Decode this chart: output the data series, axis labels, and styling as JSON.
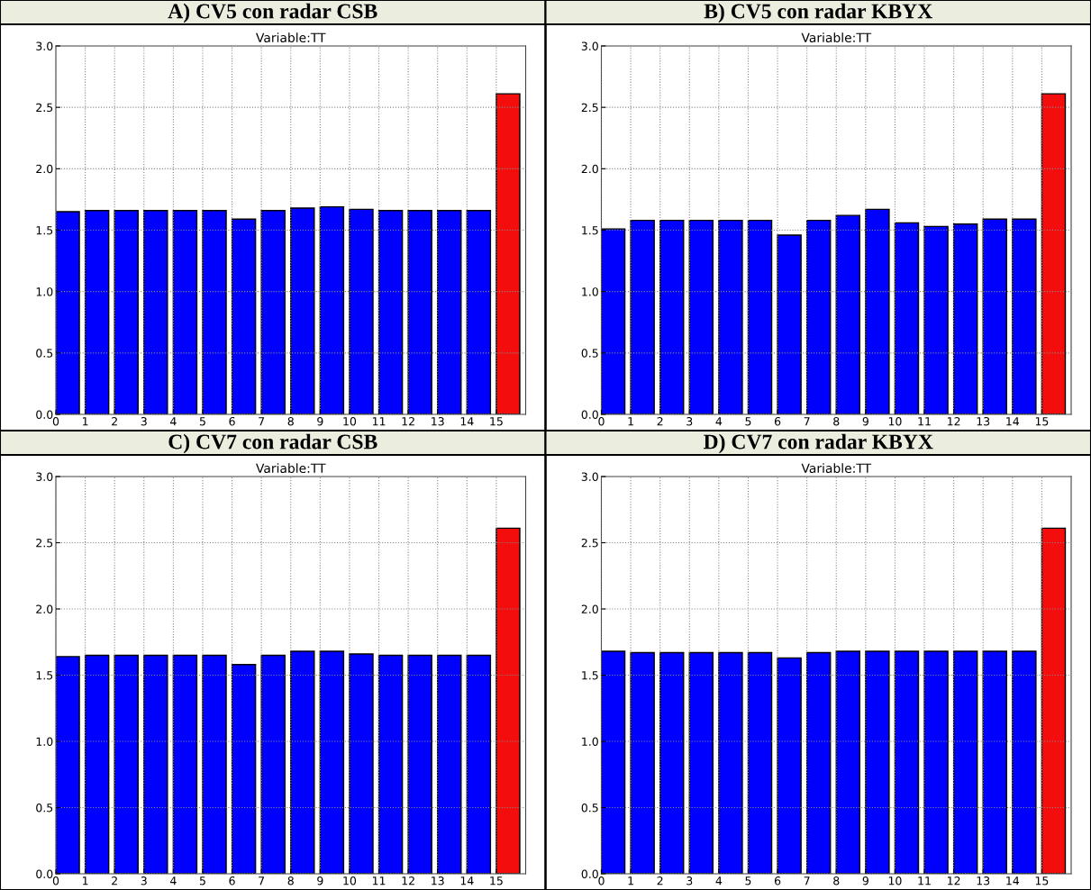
{
  "chart_data": [
    {
      "type": "bar",
      "title": "A) CV5 con radar CSB",
      "subtitle": "Variable:TT",
      "x": [
        0.4,
        1.4,
        2.4,
        3.4,
        4.4,
        5.4,
        6.4,
        7.4,
        8.4,
        9.4,
        10.4,
        11.4,
        12.4,
        13.4,
        14.4,
        15.4
      ],
      "values": [
        1.65,
        1.66,
        1.66,
        1.66,
        1.66,
        1.66,
        1.59,
        1.66,
        1.68,
        1.69,
        1.67,
        1.66,
        1.66,
        1.66,
        1.66,
        2.61
      ],
      "colors": [
        "#0000ff",
        "#0000ff",
        "#0000ff",
        "#0000ff",
        "#0000ff",
        "#0000ff",
        "#0000ff",
        "#0000ff",
        "#0000ff",
        "#0000ff",
        "#0000ff",
        "#0000ff",
        "#0000ff",
        "#0000ff",
        "#0000ff",
        "#f40d0d"
      ],
      "xlim": [
        0,
        16
      ],
      "xticks": [
        0,
        1,
        2,
        3,
        4,
        5,
        6,
        7,
        8,
        9,
        10,
        11,
        12,
        13,
        14,
        15
      ],
      "ylim": [
        0,
        3
      ],
      "yticks": [
        {
          "value": 0,
          "label": "0.0"
        },
        {
          "value": 0.5,
          "label": "0.5"
        },
        {
          "value": 1,
          "label": "1.0"
        },
        {
          "value": 1.5,
          "label": "1.5"
        },
        {
          "value": 2,
          "label": "2.0"
        },
        {
          "value": 2.5,
          "label": "2.5"
        },
        {
          "value": 3,
          "label": "3.0"
        }
      ],
      "grid": true
    },
    {
      "type": "bar",
      "title": "B) CV5 con radar KBYX",
      "subtitle": "Variable:TT",
      "x": [
        0.4,
        1.4,
        2.4,
        3.4,
        4.4,
        5.4,
        6.4,
        7.4,
        8.4,
        9.4,
        10.4,
        11.4,
        12.4,
        13.4,
        14.4,
        15.4
      ],
      "values": [
        1.51,
        1.58,
        1.58,
        1.58,
        1.58,
        1.58,
        1.46,
        1.58,
        1.62,
        1.67,
        1.56,
        1.53,
        1.55,
        1.59,
        1.59,
        2.61
      ],
      "colors": [
        "#0000ff",
        "#0000ff",
        "#0000ff",
        "#0000ff",
        "#0000ff",
        "#0000ff",
        "#0000ff",
        "#0000ff",
        "#0000ff",
        "#0000ff",
        "#0000ff",
        "#0000ff",
        "#0000ff",
        "#0000ff",
        "#0000ff",
        "#f40d0d"
      ],
      "xlim": [
        0,
        16
      ],
      "xticks": [
        0,
        1,
        2,
        3,
        4,
        5,
        6,
        7,
        8,
        9,
        10,
        11,
        12,
        13,
        14,
        15
      ],
      "ylim": [
        0,
        3
      ],
      "yticks": [
        {
          "value": 0,
          "label": "0.0"
        },
        {
          "value": 0.5,
          "label": "0.5"
        },
        {
          "value": 1,
          "label": "1.0"
        },
        {
          "value": 1.5,
          "label": "1.5"
        },
        {
          "value": 2,
          "label": "2.0"
        },
        {
          "value": 2.5,
          "label": "2.5"
        },
        {
          "value": 3,
          "label": "3.0"
        }
      ],
      "grid": true
    },
    {
      "type": "bar",
      "title": "C) CV7 con radar CSB",
      "subtitle": "Variable:TT",
      "x": [
        0.4,
        1.4,
        2.4,
        3.4,
        4.4,
        5.4,
        6.4,
        7.4,
        8.4,
        9.4,
        10.4,
        11.4,
        12.4,
        13.4,
        14.4,
        15.4
      ],
      "values": [
        1.64,
        1.65,
        1.65,
        1.65,
        1.65,
        1.65,
        1.58,
        1.65,
        1.68,
        1.68,
        1.66,
        1.65,
        1.65,
        1.65,
        1.65,
        2.61
      ],
      "colors": [
        "#0000ff",
        "#0000ff",
        "#0000ff",
        "#0000ff",
        "#0000ff",
        "#0000ff",
        "#0000ff",
        "#0000ff",
        "#0000ff",
        "#0000ff",
        "#0000ff",
        "#0000ff",
        "#0000ff",
        "#0000ff",
        "#0000ff",
        "#f40d0d"
      ],
      "xlim": [
        0,
        16
      ],
      "xticks": [
        0,
        1,
        2,
        3,
        4,
        5,
        6,
        7,
        8,
        9,
        10,
        11,
        12,
        13,
        14,
        15
      ],
      "ylim": [
        0,
        3
      ],
      "yticks": [
        {
          "value": 0,
          "label": "0.0"
        },
        {
          "value": 0.5,
          "label": "0.5"
        },
        {
          "value": 1,
          "label": "1.0"
        },
        {
          "value": 1.5,
          "label": "1.5"
        },
        {
          "value": 2,
          "label": "2.0"
        },
        {
          "value": 2.5,
          "label": "2.5"
        },
        {
          "value": 3,
          "label": "3.0"
        }
      ],
      "grid": true
    },
    {
      "type": "bar",
      "title": "D) CV7 con radar KBYX",
      "subtitle": "Variable:TT",
      "x": [
        0.4,
        1.4,
        2.4,
        3.4,
        4.4,
        5.4,
        6.4,
        7.4,
        8.4,
        9.4,
        10.4,
        11.4,
        12.4,
        13.4,
        14.4,
        15.4
      ],
      "values": [
        1.68,
        1.67,
        1.67,
        1.67,
        1.67,
        1.67,
        1.63,
        1.67,
        1.68,
        1.68,
        1.68,
        1.68,
        1.68,
        1.68,
        1.68,
        2.61
      ],
      "colors": [
        "#0000ff",
        "#0000ff",
        "#0000ff",
        "#0000ff",
        "#0000ff",
        "#0000ff",
        "#0000ff",
        "#0000ff",
        "#0000ff",
        "#0000ff",
        "#0000ff",
        "#0000ff",
        "#0000ff",
        "#0000ff",
        "#0000ff",
        "#f40d0d"
      ],
      "xlim": [
        0,
        16
      ],
      "xticks": [
        0,
        1,
        2,
        3,
        4,
        5,
        6,
        7,
        8,
        9,
        10,
        11,
        12,
        13,
        14,
        15
      ],
      "ylim": [
        0,
        3
      ],
      "yticks": [
        {
          "value": 0,
          "label": "0.0"
        },
        {
          "value": 0.5,
          "label": "0.5"
        },
        {
          "value": 1,
          "label": "1.0"
        },
        {
          "value": 1.5,
          "label": "1.5"
        },
        {
          "value": 2,
          "label": "2.0"
        },
        {
          "value": 2.5,
          "label": "2.5"
        },
        {
          "value": 3,
          "label": "3.0"
        }
      ],
      "grid": true
    }
  ]
}
